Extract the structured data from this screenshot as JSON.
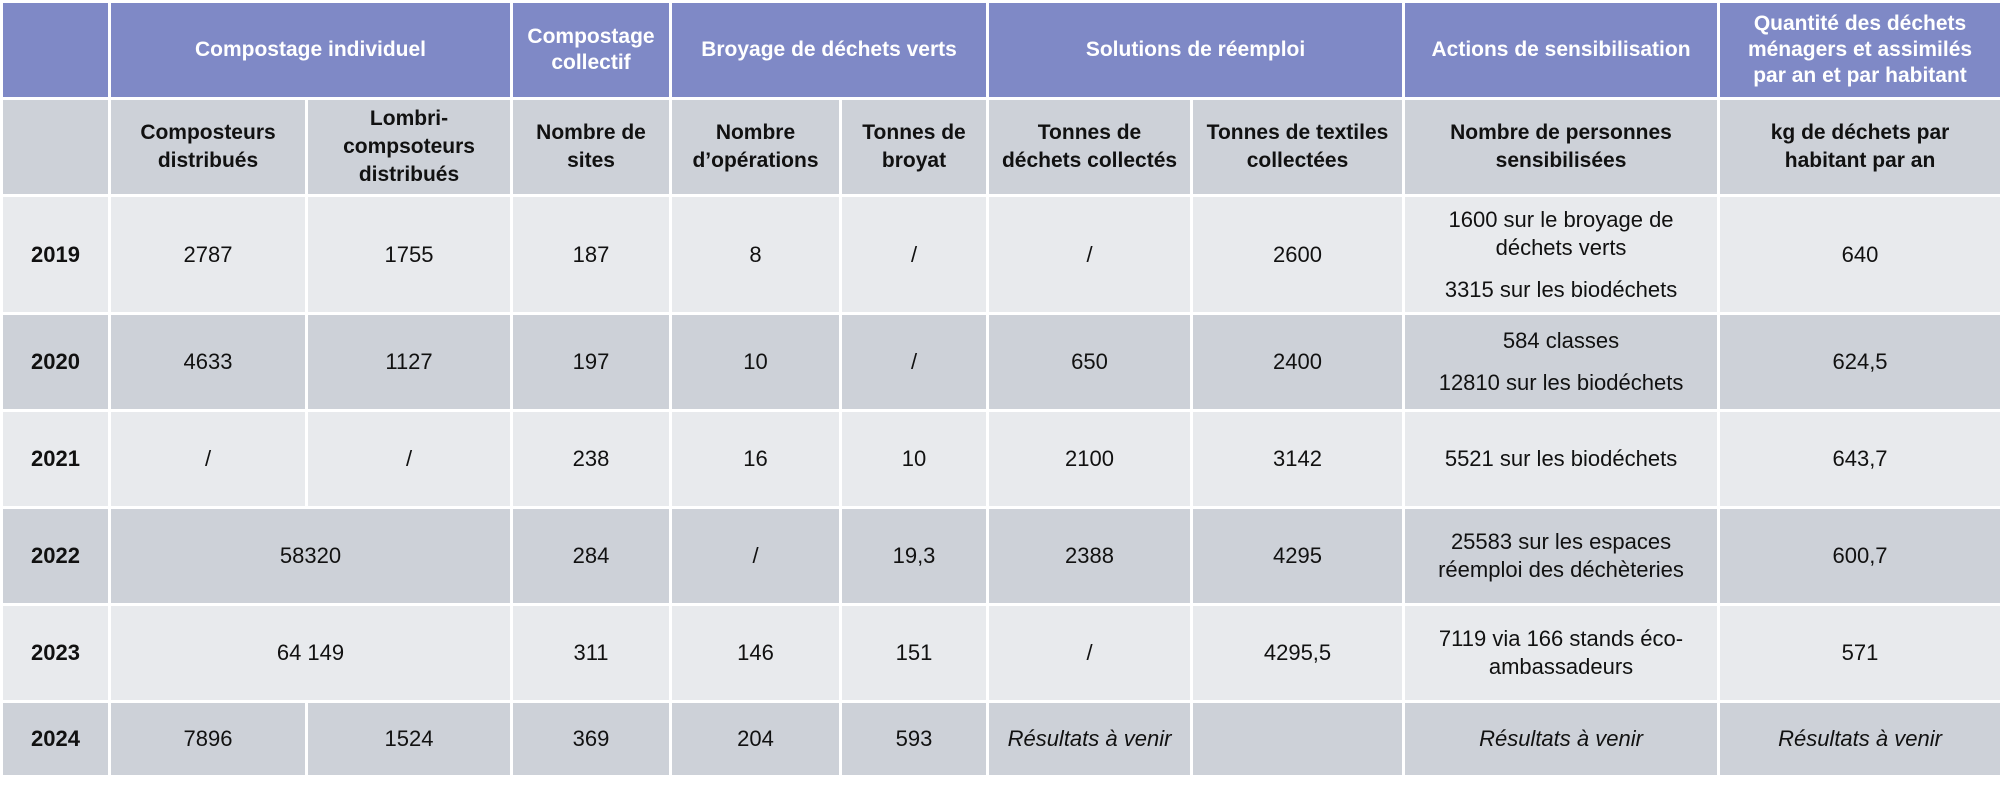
{
  "groups": {
    "compostage_individuel": "Compostage individuel",
    "compostage_collectif": "Compostage collectif",
    "broyage": "Broyage de déchets verts",
    "reemploi": "Solutions de réemploi",
    "sensibilisation": "Actions de sensibilisation",
    "quantite": "Quantité des déchets ménagers et assimilés par an et par habitant"
  },
  "subheaders": {
    "composteurs": "Composteurs distribués",
    "lombri": "Lombri-compsoteurs distribués",
    "sites": "Nombre de sites",
    "operations": "Nombre d’opérations",
    "broyat": "Tonnes de broyat",
    "dechets_collectes": "Tonnes de déchets collectés",
    "textiles": "Tonnes de textiles collectées",
    "personnes": "Nombre de personnes sensibilisées",
    "kg": "kg de déchets par habitant par an"
  },
  "rows": {
    "y2019": {
      "year": "2019",
      "composteurs": "2787",
      "lombri": "1755",
      "sites": "187",
      "operations": "8",
      "broyat": "/",
      "dechets": "/",
      "textiles": "2600",
      "sens1": "1600 sur le broyage de déchets verts",
      "sens2": "3315 sur les biodéchets",
      "kg": "640"
    },
    "y2020": {
      "year": "2020",
      "composteurs": "4633",
      "lombri": "1127",
      "sites": "197",
      "operations": "10",
      "broyat": "/",
      "dechets": "650",
      "textiles": "2400",
      "sens1": "584 classes",
      "sens2": "12810 sur les biodéchets",
      "kg": "624,5"
    },
    "y2021": {
      "year": "2021",
      "composteurs": "/",
      "lombri": "/",
      "sites": "238",
      "operations": "16",
      "broyat": "10",
      "dechets": "2100",
      "textiles": "3142",
      "sens1": "5521 sur les biodéchets",
      "kg": "643,7"
    },
    "y2022": {
      "year": "2022",
      "combined": "58320",
      "sites": "284",
      "operations": "/",
      "broyat": "19,3",
      "dechets": "2388",
      "textiles": "4295",
      "sens1": "25583 sur les espaces réemploi des déchèteries",
      "kg": "600,7"
    },
    "y2023": {
      "year": "2023",
      "combined": "64 149",
      "sites": "311",
      "operations": "146",
      "broyat": "151",
      "dechets": "/",
      "textiles": "4295,5",
      "sens1": "7119 via 166 stands éco-ambassadeurs",
      "kg": "571"
    },
    "y2024": {
      "year": "2024",
      "composteurs": "7896",
      "lombri": "1524",
      "sites": "369",
      "operations": "204",
      "broyat": "593",
      "dechets": "Résultats à venir",
      "textiles": "",
      "sens1": "Résultats à venir",
      "kg": "Résultats à venir"
    }
  }
}
